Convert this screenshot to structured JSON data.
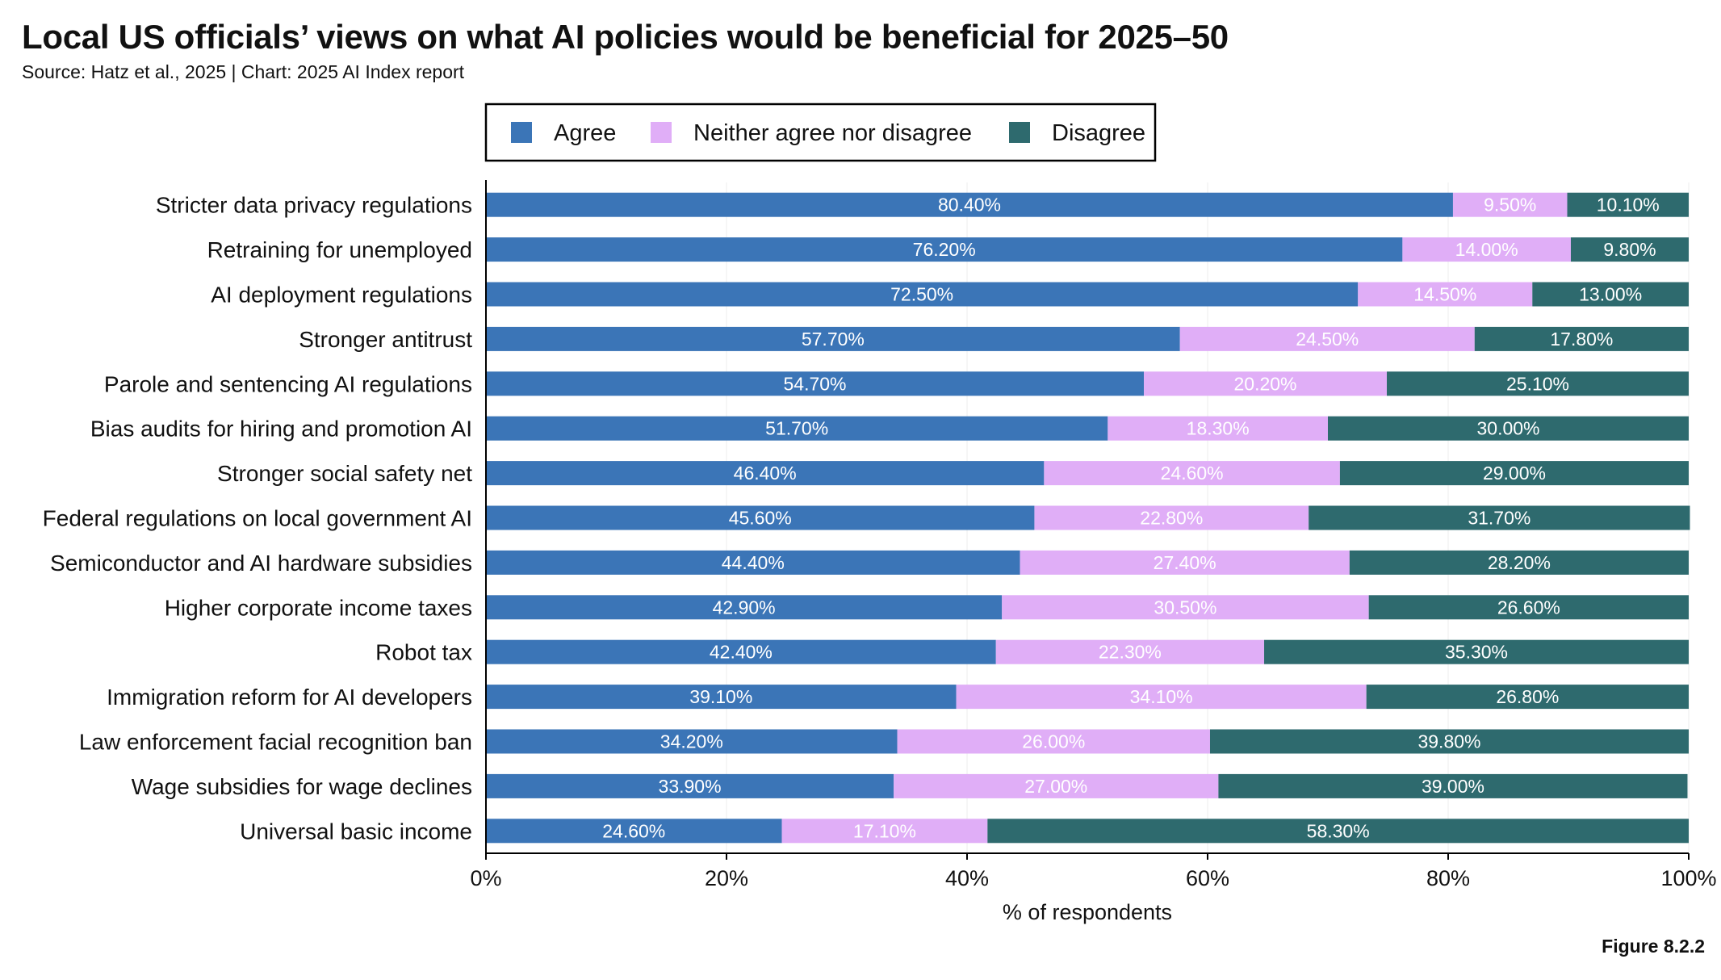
{
  "header": {
    "title": "Local US officials’ views on what AI policies would be beneficial for 2025–50",
    "subtitle": "Source: Hatz et al., 2025 | Chart: 2025 AI Index report"
  },
  "footer": {
    "figure": "Figure 8.2.2"
  },
  "chart_data": {
    "type": "bar",
    "orientation": "horizontal",
    "stacked": true,
    "xlabel": "% of respondents",
    "xlim": [
      0,
      100
    ],
    "xticks": [
      "0%",
      "20%",
      "40%",
      "60%",
      "80%",
      "100%"
    ],
    "legend_placement": "top-center",
    "categories": [
      "Stricter data privacy regulations",
      "Retraining for unemployed",
      "AI deployment regulations",
      "Stronger antitrust",
      "Parole and sentencing AI regulations",
      "Bias audits for hiring and promotion AI",
      "Stronger social safety net",
      "Federal regulations on local government AI",
      "Semiconductor and AI hardware subsidies",
      "Higher corporate income taxes",
      "Robot tax",
      "Immigration reform for AI developers",
      "Law enforcement facial recognition ban",
      "Wage subsidies for wage declines",
      "Universal basic income"
    ],
    "series": [
      {
        "name": "Agree",
        "color": "#3b75b7",
        "values": [
          80.4,
          76.2,
          72.5,
          57.7,
          54.7,
          51.7,
          46.4,
          45.6,
          44.4,
          42.9,
          42.4,
          39.1,
          34.2,
          33.9,
          24.6
        ],
        "labels": [
          "80.40%",
          "76.20%",
          "72.50%",
          "57.70%",
          "54.70%",
          "51.70%",
          "46.40%",
          "45.60%",
          "44.40%",
          "42.90%",
          "42.40%",
          "39.10%",
          "34.20%",
          "33.90%",
          "24.60%"
        ]
      },
      {
        "name": "Neither agree nor disagree",
        "color": "#e0aef7",
        "values": [
          9.5,
          14.0,
          14.5,
          24.5,
          20.2,
          18.3,
          24.6,
          22.8,
          27.4,
          30.5,
          22.3,
          34.1,
          26.0,
          27.0,
          17.1
        ],
        "labels": [
          "9.50%",
          "14.00%",
          "14.50%",
          "24.50%",
          "20.20%",
          "18.30%",
          "24.60%",
          "22.80%",
          "27.40%",
          "30.50%",
          "22.30%",
          "34.10%",
          "26.00%",
          "27.00%",
          "17.10%"
        ]
      },
      {
        "name": "Disagree",
        "color": "#2e6a6e",
        "values": [
          10.1,
          9.8,
          13.0,
          17.8,
          25.1,
          30.0,
          29.0,
          31.7,
          28.2,
          26.6,
          35.3,
          26.8,
          39.8,
          39.0,
          58.3
        ],
        "labels": [
          "10.10%",
          "9.80%",
          "13.00%",
          "17.80%",
          "25.10%",
          "30.00%",
          "29.00%",
          "31.70%",
          "28.20%",
          "26.60%",
          "35.30%",
          "26.80%",
          "39.80%",
          "39.00%",
          "58.30%"
        ]
      }
    ]
  }
}
